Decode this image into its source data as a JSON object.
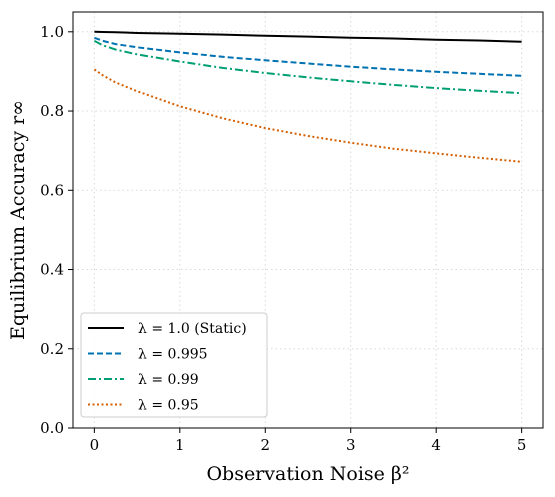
{
  "chart_data": {
    "type": "line",
    "xlabel": "Observation Noise β²",
    "ylabel": "Equilibrium Accuracy r∞",
    "xlim": [
      -0.25,
      5.25
    ],
    "ylim": [
      0.0,
      1.05
    ],
    "x_ticks": [
      0,
      1,
      2,
      3,
      4,
      5
    ],
    "y_ticks": [
      0.0,
      0.2,
      0.4,
      0.6,
      0.8,
      1.0
    ],
    "x_tick_labels": [
      "0",
      "1",
      "2",
      "3",
      "4",
      "5"
    ],
    "y_tick_labels": [
      "0.0",
      "0.2",
      "0.4",
      "0.6",
      "0.8",
      "1.0"
    ],
    "grid": true,
    "legend_position": "lower-left",
    "x": [
      0,
      0.1,
      0.25,
      0.5,
      1,
      1.5,
      2,
      2.5,
      3,
      3.5,
      4,
      4.5,
      5
    ],
    "series": [
      {
        "name": "λ = 1.0 (Static)",
        "color": "#000000",
        "dash": "solid",
        "values": [
          1.0,
          0.9995,
          0.999,
          0.997,
          0.995,
          0.993,
          0.99,
          0.988,
          0.985,
          0.983,
          0.98,
          0.978,
          0.975
        ]
      },
      {
        "name": "λ = 0.995",
        "color": "#0072B2",
        "dash": "dashed",
        "values": [
          0.985,
          0.977,
          0.969,
          0.961,
          0.948,
          0.937,
          0.928,
          0.92,
          0.912,
          0.905,
          0.899,
          0.894,
          0.889
        ]
      },
      {
        "name": "λ = 0.99",
        "color": "#009E73",
        "dash": "dashdot",
        "values": [
          0.977,
          0.966,
          0.955,
          0.943,
          0.925,
          0.909,
          0.896,
          0.885,
          0.875,
          0.866,
          0.858,
          0.851,
          0.845
        ]
      },
      {
        "name": "λ = 0.95",
        "color": "#D55E00",
        "dash": "dotted",
        "values": [
          0.905,
          0.89,
          0.872,
          0.85,
          0.812,
          0.782,
          0.757,
          0.737,
          0.72,
          0.705,
          0.693,
          0.682,
          0.672
        ]
      }
    ]
  }
}
